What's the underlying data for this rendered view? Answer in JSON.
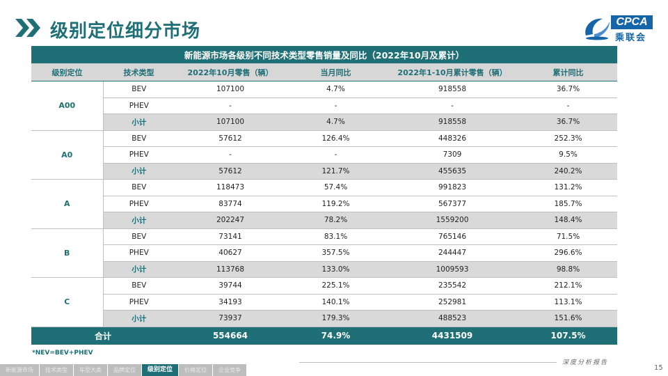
{
  "header": {
    "title": "级别定位细分市场",
    "logo_text": "CPCA",
    "logo_sub": "乘联会"
  },
  "table": {
    "caption": "新能源市场各级别不同技术类型零售销量及同比（2022年10月及累计）",
    "columns": [
      "级别定位",
      "技术类型",
      "2022年10月零售（辆）",
      "当月同比",
      "2022年1-10月累计零售（辆）",
      "累计同比"
    ],
    "groups": [
      {
        "name": "A00",
        "rows": [
          [
            "BEV",
            "107100",
            "4.7%",
            "918558",
            "36.7%"
          ],
          [
            "PHEV",
            "-",
            "-",
            "-",
            "-"
          ],
          [
            "小计",
            "107100",
            "4.7%",
            "918558",
            "36.7%"
          ]
        ]
      },
      {
        "name": "A0",
        "rows": [
          [
            "BEV",
            "57612",
            "126.4%",
            "448326",
            "252.3%"
          ],
          [
            "PHEV",
            "-",
            "-",
            "7309",
            "9.5%"
          ],
          [
            "小计",
            "57612",
            "121.7%",
            "455635",
            "240.2%"
          ]
        ]
      },
      {
        "name": "A",
        "rows": [
          [
            "BEV",
            "118473",
            "57.4%",
            "991823",
            "131.2%"
          ],
          [
            "PHEV",
            "83774",
            "119.2%",
            "567377",
            "185.7%"
          ],
          [
            "小计",
            "202247",
            "78.2%",
            "1559200",
            "148.4%"
          ]
        ]
      },
      {
        "name": "B",
        "rows": [
          [
            "BEV",
            "73141",
            "83.1%",
            "765146",
            "71.5%"
          ],
          [
            "PHEV",
            "40627",
            "357.5%",
            "244447",
            "296.6%"
          ],
          [
            "小计",
            "113768",
            "133.0%",
            "1009593",
            "98.8%"
          ]
        ]
      },
      {
        "name": "C",
        "rows": [
          [
            "BEV",
            "39744",
            "225.1%",
            "235542",
            "212.1%"
          ],
          [
            "PHEV",
            "34193",
            "140.1%",
            "252981",
            "113.1%"
          ],
          [
            "小计",
            "73937",
            "179.3%",
            "488523",
            "151.6%"
          ]
        ]
      }
    ],
    "total": [
      "合计",
      "554664",
      "74.9%",
      "4431509",
      "107.5%"
    ]
  },
  "footer": {
    "note": "*NEV=BEV+PHEV",
    "deep_report": "深度分析报告",
    "page_number": "15"
  },
  "nav": {
    "items": [
      "新能源市场",
      "技术类型",
      "车型大类",
      "品牌定位",
      "级别定位",
      "价格定位",
      "企业竞争"
    ],
    "active_index": 4
  },
  "colors": {
    "primary": "#1e6f76",
    "header_row": "#d7d7d7",
    "subtotal_row": "#d9d9d9",
    "logo_blue": "#1565a8"
  }
}
